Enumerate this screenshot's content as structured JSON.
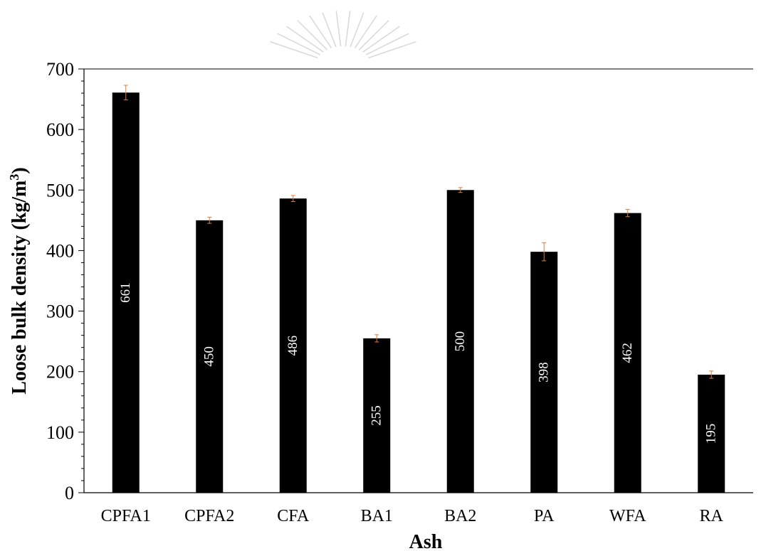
{
  "chart_data": {
    "type": "bar",
    "title": "",
    "xlabel": "Ash",
    "ylabel_main": "Loose bulk density (kg/m",
    "ylabel_sup": "3",
    "ylabel_end": ")",
    "ylim": [
      0,
      700
    ],
    "yticks": [
      0,
      100,
      200,
      300,
      400,
      500,
      600,
      700
    ],
    "categories": [
      "CPFA1",
      "CPFA2",
      "CFA",
      "BA1",
      "BA2",
      "PA",
      "WFA",
      "RA"
    ],
    "values": [
      661,
      450,
      486,
      255,
      500,
      398,
      462,
      195
    ],
    "errors": [
      12,
      5,
      5,
      6,
      4,
      15,
      6,
      6
    ],
    "data_labels": [
      "661",
      "450",
      "486",
      "255",
      "500",
      "398",
      "462",
      "195"
    ],
    "bar_color": "#000000",
    "error_bar_color": "#e07b39",
    "grid": false,
    "legend": "none"
  }
}
